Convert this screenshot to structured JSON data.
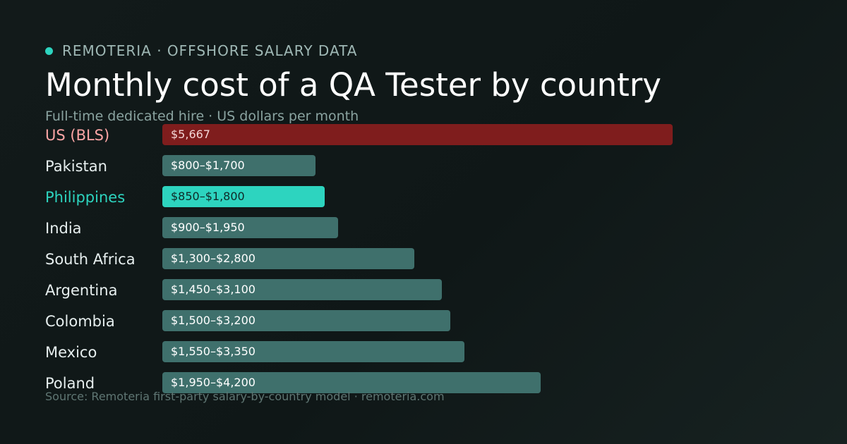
{
  "header": {
    "brand": "REMOTERIA · OFFSHORE SALARY DATA",
    "title": "Monthly cost of a QA Tester by country",
    "subtitle": "Full-time dedicated hire · US dollars per month"
  },
  "footer": {
    "source": "Source: Remoteria first-party salary-by-country model · remoteria.com"
  },
  "colors": {
    "brand_dot": "#2dd4bf",
    "us_bar": "#7f1d1d",
    "us_label": "#fca5a5",
    "highlight_bar": "#2dd4bf",
    "highlight_label": "#2dd4bf",
    "default_bar": "#3f706c",
    "default_label": "#e6eeee"
  },
  "chart_data": {
    "type": "bar",
    "orientation": "horizontal",
    "title": "Monthly cost of a QA Tester by country",
    "subtitle": "Full-time dedicated hire · US dollars per month",
    "xlim": [
      0,
      7600
    ],
    "grid": false,
    "legend": "none",
    "categories": [
      "US (BLS)",
      "Pakistan",
      "Philippines",
      "India",
      "South Africa",
      "Argentina",
      "Colombia",
      "Mexico",
      "Poland"
    ],
    "series": [
      {
        "values": [
          5667,
          1700,
          1800,
          1950,
          2800,
          3100,
          3200,
          3350,
          4200
        ],
        "data_labels": [
          "$5,667",
          "$800–$1,700",
          "$850–$1,800",
          "$900–$1,950",
          "$1,300–$2,800",
          "$1,450–$3,100",
          "$1,500–$3,200",
          "$1,550–$3,350",
          "$1,950–$4,200"
        ],
        "styles": [
          "us",
          "default",
          "highlight",
          "default",
          "default",
          "default",
          "default",
          "default",
          "default"
        ]
      }
    ]
  }
}
